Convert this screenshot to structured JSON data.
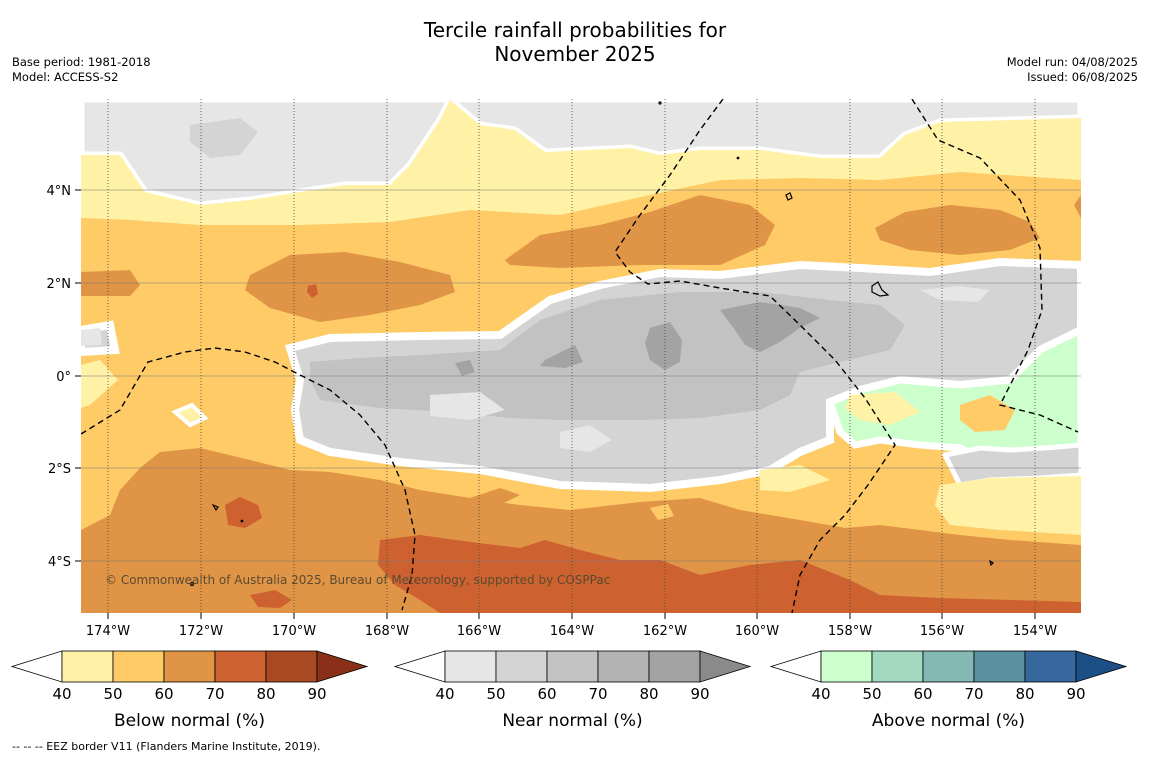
{
  "title_line1": "Tercile rainfall probabilities for",
  "title_line2": "November 2025",
  "base_period": "Base period: 1981-2018",
  "model": "Model: ACCESS-S2",
  "model_run": "Model run: 04/08/2025",
  "issued": "Issued: 06/08/2025",
  "copyright": "© Commonwealth of Australia 2025, Bureau of Meteorology, supported by COSPPac",
  "footer": "--  --  -- EEZ border V11 (Flanders Marine Institute, 2019).",
  "lon_labels": [
    "174°W",
    "172°W",
    "170°W",
    "168°W",
    "166°W",
    "164°W",
    "162°W",
    "160°W",
    "158°W",
    "156°W",
    "154°W"
  ],
  "lat_labels": [
    "4°N",
    "2°N",
    "0°",
    "2°S",
    "4°S"
  ],
  "colorbars": [
    {
      "title": "Below normal (%)",
      "ticks": [
        "40",
        "50",
        "60",
        "70",
        "80",
        "90"
      ],
      "colors": [
        "#fff2a6",
        "#fecb66",
        "#e09446",
        "#cd6230",
        "#aa4a24",
        "#8a3018"
      ]
    },
    {
      "title": "Near normal (%)",
      "ticks": [
        "40",
        "50",
        "60",
        "70",
        "80",
        "90"
      ],
      "colors": [
        "#e6e6e6",
        "#d4d4d4",
        "#c2c2c2",
        "#b2b2b2",
        "#a3a3a3",
        "#8a8a8a"
      ]
    },
    {
      "title": "Above normal (%)",
      "ticks": [
        "40",
        "50",
        "60",
        "70",
        "80",
        "90"
      ],
      "colors": [
        "#ccffcc",
        "#a2d9bf",
        "#84b8b2",
        "#5b90a0",
        "#36689e",
        "#1d4f87"
      ]
    }
  ]
}
